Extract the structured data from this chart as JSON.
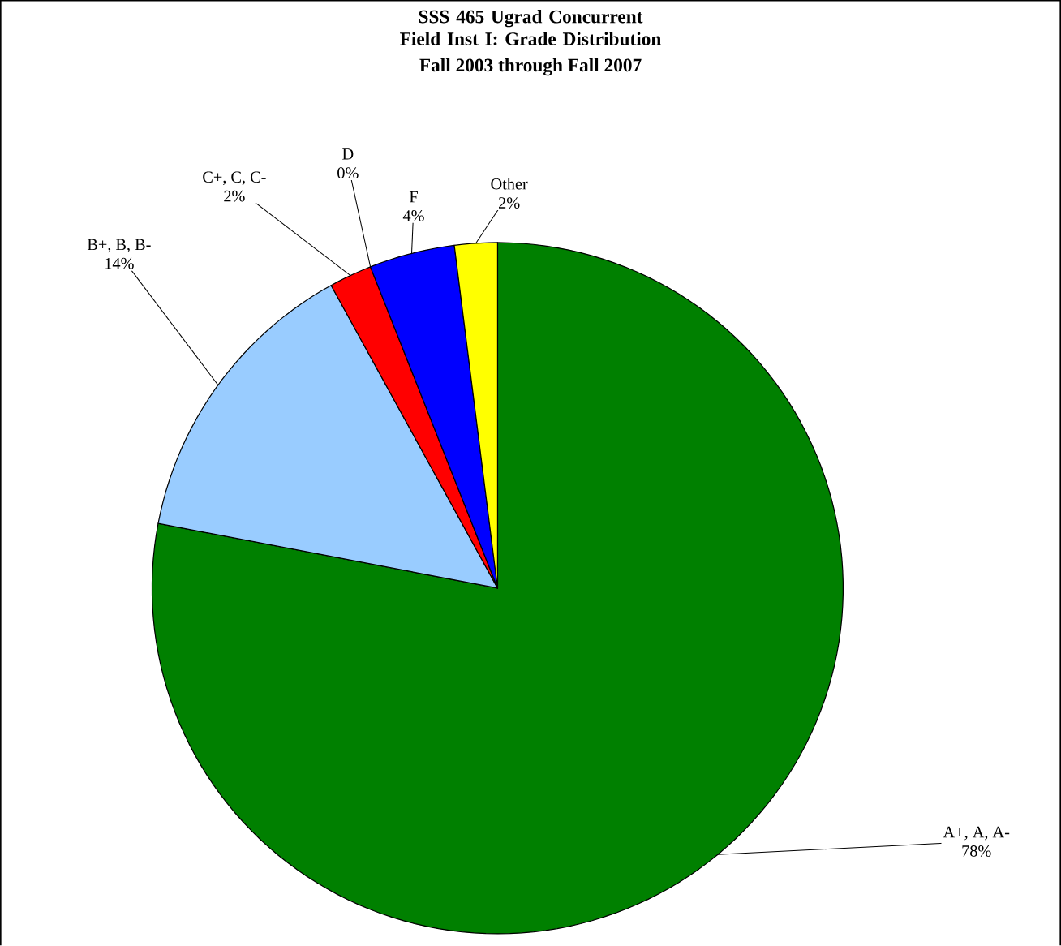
{
  "chart_data": {
    "type": "pie",
    "title": "SSS 465 Ugrad Concurrent Field Inst I: Grade Distribution",
    "subtitle": "Fall 2003 through Fall 2007",
    "categories": [
      "A+, A, A-",
      "B+, B, B-",
      "C+, C, C-",
      "D",
      "F",
      "Other"
    ],
    "values": [
      78,
      14,
      2,
      0,
      4,
      2
    ],
    "colors": [
      "#008000",
      "#99ccff",
      "#ff0000",
      "#800080",
      "#0000ff",
      "#ffff00"
    ],
    "value_labels": [
      "78%",
      "14%",
      "2%",
      "0%",
      "4%",
      "2%"
    ]
  }
}
